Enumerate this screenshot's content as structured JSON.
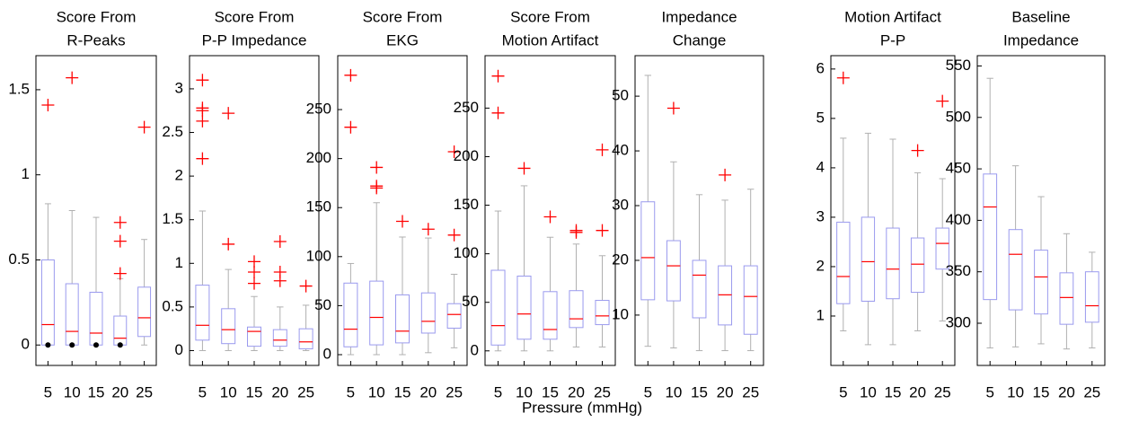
{
  "x_label": "Pressure (mmHg)",
  "style": {
    "box": "#9a9aee",
    "median": "#ff0000",
    "whisker": "#b0b0b0",
    "outlier": "#ff0000",
    "dot": "#000000"
  },
  "chart_data": [
    {
      "type": "box",
      "title": [
        "Score From",
        "R-Peaks"
      ],
      "categories": [
        "5",
        "10",
        "15",
        "20",
        "25"
      ],
      "ylim": [
        -0.12,
        1.7
      ],
      "yticks": [
        0,
        0.5,
        1,
        1.5
      ],
      "boxes": [
        {
          "whislo": 0,
          "q1": 0,
          "med": 0.12,
          "q3": 0.5,
          "whishi": 0.83,
          "fliers": [
            1.41
          ]
        },
        {
          "whislo": 0,
          "q1": 0,
          "med": 0.08,
          "q3": 0.36,
          "whishi": 0.79,
          "fliers": [
            1.57
          ]
        },
        {
          "whislo": 0,
          "q1": 0,
          "med": 0.07,
          "q3": 0.31,
          "whishi": 0.75,
          "fliers": []
        },
        {
          "whislo": 0,
          "q1": 0,
          "med": 0.04,
          "q3": 0.17,
          "whishi": 0.39,
          "fliers": [
            0.42,
            0.61,
            0.72
          ]
        },
        {
          "whislo": 0,
          "q1": 0.05,
          "med": 0.16,
          "q3": 0.34,
          "whishi": 0.62,
          "fliers": [
            1.28
          ]
        }
      ],
      "dots": [
        0,
        0,
        0,
        0,
        null
      ]
    },
    {
      "type": "box",
      "title": [
        "Score From",
        "P-P Impedance"
      ],
      "categories": [
        "5",
        "10",
        "15",
        "20",
        "25"
      ],
      "ylim": [
        -0.17,
        3.38
      ],
      "yticks": [
        0,
        0.5,
        1,
        1.5,
        2,
        2.5,
        3
      ],
      "boxes": [
        {
          "whislo": 0,
          "q1": 0.12,
          "med": 0.29,
          "q3": 0.75,
          "whishi": 1.6,
          "fliers": [
            2.2,
            2.63,
            2.75,
            2.78,
            3.1
          ]
        },
        {
          "whislo": 0,
          "q1": 0.08,
          "med": 0.24,
          "q3": 0.48,
          "whishi": 0.93,
          "fliers": [
            1.22,
            2.72
          ]
        },
        {
          "whislo": 0,
          "q1": 0.05,
          "med": 0.22,
          "q3": 0.27,
          "whishi": 0.62,
          "fliers": [
            0.77,
            0.9,
            1.02
          ]
        },
        {
          "whislo": 0,
          "q1": 0.05,
          "med": 0.12,
          "q3": 0.24,
          "whishi": 0.5,
          "fliers": [
            0.8,
            0.9,
            1.25
          ]
        },
        {
          "whislo": 0,
          "q1": 0.02,
          "med": 0.1,
          "q3": 0.25,
          "whishi": 0.52,
          "fliers": [
            0.74
          ]
        }
      ]
    },
    {
      "type": "box",
      "title": [
        "Score From",
        "EKG"
      ],
      "categories": [
        "5",
        "10",
        "15",
        "20",
        "25"
      ],
      "ylim": [
        -11,
        305
      ],
      "yticks": [
        0,
        50,
        100,
        150,
        200,
        250
      ],
      "boxes": [
        {
          "whislo": 0,
          "q1": 8,
          "med": 26,
          "q3": 73,
          "whishi": 93,
          "fliers": [
            232,
            285
          ]
        },
        {
          "whislo": 0,
          "q1": 10,
          "med": 38,
          "q3": 75,
          "whishi": 155,
          "fliers": [
            170,
            172,
            191
          ]
        },
        {
          "whislo": 0,
          "q1": 12,
          "med": 24,
          "q3": 61,
          "whishi": 120,
          "fliers": [
            136
          ]
        },
        {
          "whislo": 2,
          "q1": 22,
          "med": 34,
          "q3": 63,
          "whishi": 119,
          "fliers": [
            128
          ]
        },
        {
          "whislo": 7,
          "q1": 27,
          "med": 41,
          "q3": 52,
          "whishi": 82,
          "fliers": [
            122,
            207
          ]
        }
      ]
    },
    {
      "type": "box",
      "title": [
        "Score From",
        "Motion Artifact"
      ],
      "categories": [
        "5",
        "10",
        "15",
        "20",
        "25"
      ],
      "ylim": [
        -15,
        304
      ],
      "yticks": [
        0,
        50,
        100,
        150,
        200,
        250
      ],
      "boxes": [
        {
          "whislo": 0,
          "q1": 6,
          "med": 26,
          "q3": 83,
          "whishi": 144,
          "fliers": [
            245,
            283
          ]
        },
        {
          "whislo": 0,
          "q1": 12,
          "med": 38,
          "q3": 77,
          "whishi": 170,
          "fliers": [
            188
          ]
        },
        {
          "whislo": 0,
          "q1": 12,
          "med": 22,
          "q3": 61,
          "whishi": 117,
          "fliers": [
            138
          ]
        },
        {
          "whislo": 4,
          "q1": 24,
          "med": 33,
          "q3": 62,
          "whishi": 110,
          "fliers": [
            122,
            124
          ]
        },
        {
          "whislo": 4,
          "q1": 27,
          "med": 36,
          "q3": 52,
          "whishi": 98,
          "fliers": [
            124,
            207
          ]
        }
      ]
    },
    {
      "type": "box",
      "title": [
        "Impedance",
        "Change"
      ],
      "categories": [
        "5",
        "10",
        "15",
        "20",
        "25"
      ],
      "ylim": [
        0.8,
        57.4
      ],
      "yticks": [
        10,
        20,
        30,
        40,
        50
      ],
      "boxes": [
        {
          "whislo": 4.3,
          "q1": 12.8,
          "med": 20.5,
          "q3": 30.7,
          "whishi": 53.8,
          "fliers": []
        },
        {
          "whislo": 4,
          "q1": 12.6,
          "med": 19,
          "q3": 23.6,
          "whishi": 38,
          "fliers": [
            47.8
          ]
        },
        {
          "whislo": 3.5,
          "q1": 9.5,
          "med": 17.3,
          "q3": 20,
          "whishi": 32,
          "fliers": []
        },
        {
          "whislo": 3.5,
          "q1": 8.2,
          "med": 13.7,
          "q3": 19,
          "whishi": 31,
          "fliers": [
            35.6
          ]
        },
        {
          "whislo": 3.5,
          "q1": 6.5,
          "med": 13.4,
          "q3": 19,
          "whishi": 33,
          "fliers": []
        }
      ]
    },
    {
      "type": "box",
      "title": [
        "Motion Artifact",
        "P-P"
      ],
      "categories": [
        "5",
        "10",
        "15",
        "20",
        "25"
      ],
      "ylim": [
        0,
        6.27
      ],
      "yticks": [
        1,
        2,
        3,
        4,
        5,
        6
      ],
      "boxes": [
        {
          "whislo": 0.7,
          "q1": 1.25,
          "med": 1.8,
          "q3": 2.9,
          "whishi": 4.6,
          "fliers": [
            5.82
          ]
        },
        {
          "whislo": 0.42,
          "q1": 1.3,
          "med": 2.1,
          "q3": 3.0,
          "whishi": 4.7,
          "fliers": []
        },
        {
          "whislo": 0.42,
          "q1": 1.35,
          "med": 1.95,
          "q3": 2.78,
          "whishi": 4.58,
          "fliers": []
        },
        {
          "whislo": 0.7,
          "q1": 1.48,
          "med": 2.05,
          "q3": 2.58,
          "whishi": 3.9,
          "fliers": [
            4.35
          ]
        },
        {
          "whislo": 0.9,
          "q1": 1.95,
          "med": 2.47,
          "q3": 2.78,
          "whishi": 3.78,
          "fliers": [
            5.35
          ]
        }
      ]
    },
    {
      "type": "box",
      "title": [
        "Baseline",
        "Impedance"
      ],
      "categories": [
        "5",
        "10",
        "15",
        "20",
        "25"
      ],
      "ylim": [
        259,
        560
      ],
      "yticks": [
        300,
        350,
        400,
        450,
        500,
        550
      ],
      "boxes": [
        {
          "whislo": 276,
          "q1": 323,
          "med": 413,
          "q3": 445,
          "whishi": 538,
          "fliers": []
        },
        {
          "whislo": 277,
          "q1": 313,
          "med": 367,
          "q3": 391,
          "whishi": 453,
          "fliers": []
        },
        {
          "whislo": 280,
          "q1": 309,
          "med": 345,
          "q3": 371,
          "whishi": 423,
          "fliers": []
        },
        {
          "whislo": 275,
          "q1": 299,
          "med": 325,
          "q3": 349,
          "whishi": 387,
          "fliers": []
        },
        {
          "whislo": 276,
          "q1": 301,
          "med": 317,
          "q3": 350,
          "whishi": 369,
          "fliers": []
        }
      ]
    }
  ]
}
